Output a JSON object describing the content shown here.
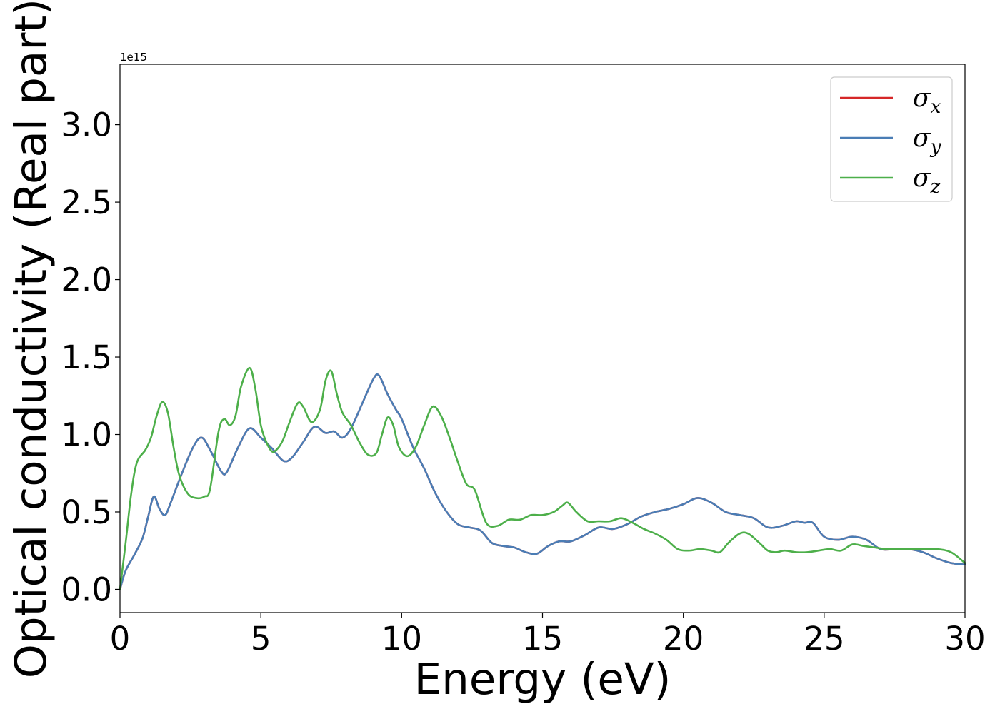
{
  "chart_data": {
    "type": "line",
    "xlabel": "Energy (eV)",
    "ylabel": "Optical conductivity (Real part)",
    "offset_text": "1e15",
    "xlim": [
      0,
      30
    ],
    "ylim": [
      -0.15,
      3.39
    ],
    "y_scale_factor": 1000000000000000.0,
    "x_ticks": [
      0,
      5,
      10,
      15,
      20,
      25,
      30
    ],
    "y_ticks": [
      0.0,
      0.5,
      1.0,
      1.5,
      2.0,
      2.5,
      3.0
    ],
    "x_tick_labels": [
      "0",
      "5",
      "10",
      "15",
      "20",
      "25",
      "30"
    ],
    "y_tick_labels": [
      "0.0",
      "0.5",
      "1.0",
      "1.5",
      "2.0",
      "2.5",
      "3.0"
    ],
    "grid": false,
    "legend_position": "top-right",
    "series": [
      {
        "name": "σx",
        "name_base": "σ",
        "name_sub": "x",
        "color": "#d62728",
        "x": [
          0,
          0.2,
          0.5,
          0.8,
          1.0,
          1.2,
          1.4,
          1.6,
          1.8,
          2.2,
          2.6,
          2.9,
          3.2,
          3.6,
          3.8,
          4.2,
          4.6,
          5.0,
          5.4,
          5.8,
          6.1,
          6.5,
          6.9,
          7.3,
          7.6,
          7.9,
          8.2,
          8.6,
          9.0,
          9.2,
          9.5,
          9.8,
          10.0,
          10.4,
          10.8,
          11.2,
          11.6,
          12.0,
          12.4,
          12.8,
          13.2,
          13.6,
          14.0,
          14.4,
          14.8,
          15.2,
          15.6,
          16.0,
          16.5,
          17.0,
          17.5,
          18.0,
          18.5,
          19.0,
          19.5,
          20.0,
          20.5,
          21.0,
          21.5,
          22.0,
          22.5,
          23.0,
          23.5,
          24.0,
          24.3,
          24.6,
          25.0,
          25.5,
          26.0,
          26.5,
          27.0,
          27.5,
          28.0,
          28.5,
          29.0,
          29.5,
          30.0
        ],
        "values": [
          0.0,
          0.12,
          0.22,
          0.33,
          0.47,
          0.6,
          0.52,
          0.48,
          0.56,
          0.75,
          0.92,
          0.98,
          0.9,
          0.76,
          0.76,
          0.92,
          1.04,
          0.98,
          0.91,
          0.83,
          0.85,
          0.95,
          1.05,
          1.01,
          1.02,
          0.98,
          1.04,
          1.2,
          1.36,
          1.38,
          1.26,
          1.16,
          1.1,
          0.92,
          0.78,
          0.62,
          0.5,
          0.42,
          0.4,
          0.38,
          0.3,
          0.28,
          0.27,
          0.24,
          0.23,
          0.28,
          0.31,
          0.31,
          0.35,
          0.4,
          0.39,
          0.42,
          0.47,
          0.5,
          0.52,
          0.55,
          0.59,
          0.56,
          0.5,
          0.48,
          0.46,
          0.4,
          0.41,
          0.44,
          0.43,
          0.43,
          0.34,
          0.32,
          0.34,
          0.32,
          0.26,
          0.26,
          0.26,
          0.24,
          0.2,
          0.17,
          0.16
        ]
      },
      {
        "name": "σy",
        "name_base": "σ",
        "name_sub": "y",
        "color": "#4a7db5",
        "x": [
          0,
          0.2,
          0.5,
          0.8,
          1.0,
          1.2,
          1.4,
          1.6,
          1.8,
          2.2,
          2.6,
          2.9,
          3.2,
          3.6,
          3.8,
          4.2,
          4.6,
          5.0,
          5.4,
          5.8,
          6.1,
          6.5,
          6.9,
          7.3,
          7.6,
          7.9,
          8.2,
          8.6,
          9.0,
          9.2,
          9.5,
          9.8,
          10.0,
          10.4,
          10.8,
          11.2,
          11.6,
          12.0,
          12.4,
          12.8,
          13.2,
          13.6,
          14.0,
          14.4,
          14.8,
          15.2,
          15.6,
          16.0,
          16.5,
          17.0,
          17.5,
          18.0,
          18.5,
          19.0,
          19.5,
          20.0,
          20.5,
          21.0,
          21.5,
          22.0,
          22.5,
          23.0,
          23.5,
          24.0,
          24.3,
          24.6,
          25.0,
          25.5,
          26.0,
          26.5,
          27.0,
          27.5,
          28.0,
          28.5,
          29.0,
          29.5,
          30.0
        ],
        "values": [
          0.0,
          0.12,
          0.22,
          0.33,
          0.47,
          0.6,
          0.52,
          0.48,
          0.56,
          0.75,
          0.92,
          0.98,
          0.9,
          0.76,
          0.76,
          0.92,
          1.04,
          0.98,
          0.91,
          0.83,
          0.85,
          0.95,
          1.05,
          1.01,
          1.02,
          0.98,
          1.04,
          1.2,
          1.36,
          1.38,
          1.26,
          1.16,
          1.1,
          0.92,
          0.78,
          0.62,
          0.5,
          0.42,
          0.4,
          0.38,
          0.3,
          0.28,
          0.27,
          0.24,
          0.23,
          0.28,
          0.31,
          0.31,
          0.35,
          0.4,
          0.39,
          0.42,
          0.47,
          0.5,
          0.52,
          0.55,
          0.59,
          0.56,
          0.5,
          0.48,
          0.46,
          0.4,
          0.41,
          0.44,
          0.43,
          0.43,
          0.34,
          0.32,
          0.34,
          0.32,
          0.26,
          0.26,
          0.26,
          0.24,
          0.2,
          0.17,
          0.16
        ]
      },
      {
        "name": "σz",
        "name_base": "σ",
        "name_sub": "z",
        "color": "#4daf4a",
        "x": [
          0,
          0.2,
          0.4,
          0.6,
          0.9,
          1.1,
          1.3,
          1.5,
          1.7,
          1.9,
          2.1,
          2.4,
          2.7,
          3.0,
          3.2,
          3.5,
          3.7,
          3.9,
          4.1,
          4.3,
          4.6,
          4.8,
          5.0,
          5.2,
          5.4,
          5.6,
          5.8,
          6.0,
          6.3,
          6.5,
          6.8,
          7.1,
          7.3,
          7.5,
          7.7,
          7.9,
          8.2,
          8.5,
          8.8,
          9.1,
          9.3,
          9.5,
          9.7,
          9.9,
          10.2,
          10.5,
          10.8,
          11.1,
          11.4,
          11.7,
          12.0,
          12.3,
          12.6,
          13.0,
          13.4,
          13.8,
          14.2,
          14.6,
          15.0,
          15.4,
          15.7,
          15.9,
          16.2,
          16.6,
          17.0,
          17.4,
          17.8,
          18.2,
          18.6,
          19.0,
          19.4,
          19.8,
          20.2,
          20.6,
          21.0,
          21.3,
          21.6,
          22.0,
          22.3,
          22.7,
          23.0,
          23.3,
          23.6,
          24.0,
          24.4,
          24.8,
          25.2,
          25.6,
          26.0,
          26.4,
          26.8,
          27.2,
          27.6,
          28.0,
          28.5,
          29.0,
          29.5,
          30.0
        ],
        "values": [
          0.0,
          0.3,
          0.62,
          0.82,
          0.9,
          0.98,
          1.12,
          1.21,
          1.14,
          0.92,
          0.74,
          0.62,
          0.59,
          0.6,
          0.65,
          1.02,
          1.1,
          1.06,
          1.12,
          1.31,
          1.43,
          1.3,
          1.06,
          0.95,
          0.89,
          0.91,
          0.97,
          1.07,
          1.2,
          1.18,
          1.08,
          1.16,
          1.35,
          1.41,
          1.26,
          1.14,
          1.06,
          0.95,
          0.87,
          0.88,
          1.0,
          1.11,
          1.06,
          0.92,
          0.86,
          0.92,
          1.06,
          1.18,
          1.12,
          0.98,
          0.82,
          0.68,
          0.64,
          0.43,
          0.41,
          0.45,
          0.45,
          0.48,
          0.48,
          0.5,
          0.54,
          0.56,
          0.5,
          0.44,
          0.44,
          0.44,
          0.46,
          0.43,
          0.39,
          0.36,
          0.32,
          0.26,
          0.25,
          0.26,
          0.25,
          0.24,
          0.3,
          0.36,
          0.36,
          0.3,
          0.25,
          0.24,
          0.25,
          0.24,
          0.24,
          0.25,
          0.26,
          0.25,
          0.29,
          0.28,
          0.27,
          0.26,
          0.26,
          0.26,
          0.26,
          0.26,
          0.24,
          0.17
        ]
      }
    ]
  }
}
